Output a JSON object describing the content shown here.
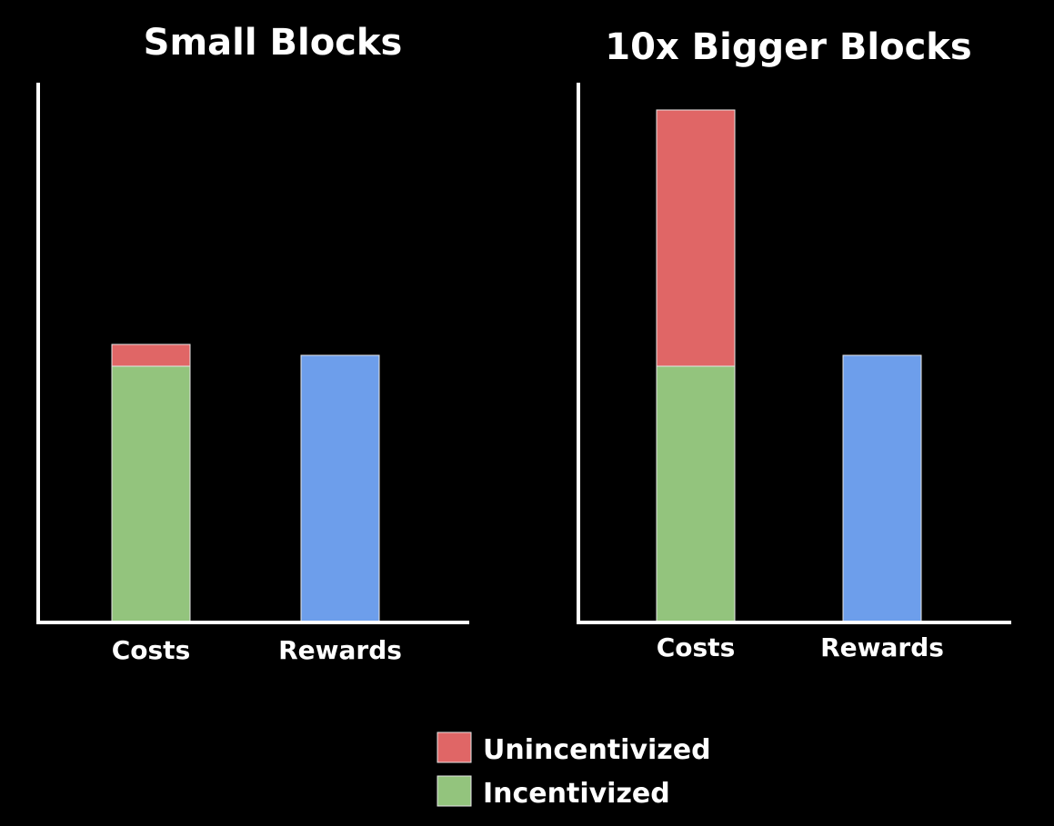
{
  "colors": {
    "background": "#000000",
    "axis": "#ffffff",
    "text": "#ffffff",
    "incentivized": "#93c47d",
    "unincentivized": "#e06666",
    "rewards": "#6d9eeb",
    "bar_edge": "#e6e6e6"
  },
  "legend": {
    "placement": "bottom-center",
    "items": [
      {
        "label": "Unincentivized",
        "color_key": "unincentivized"
      },
      {
        "label": "Incentivized",
        "color_key": "incentivized"
      }
    ]
  },
  "chart_data": [
    {
      "type": "bar",
      "stacked": true,
      "title": "Small Blocks",
      "xlabel": "",
      "ylabel": "",
      "ylim": [
        0,
        100
      ],
      "grid": false,
      "categories": [
        "Costs",
        "Rewards"
      ],
      "bars": [
        {
          "category": "Costs",
          "segments": [
            {
              "series": "Incentivized",
              "value": 47,
              "color_key": "incentivized"
            },
            {
              "series": "Unincentivized",
              "value": 4,
              "color_key": "unincentivized"
            }
          ]
        },
        {
          "category": "Rewards",
          "segments": [
            {
              "series": "Rewards",
              "value": 49,
              "color_key": "rewards"
            }
          ]
        }
      ]
    },
    {
      "type": "bar",
      "stacked": true,
      "title": "10x Bigger Blocks",
      "xlabel": "",
      "ylabel": "",
      "ylim": [
        0,
        100
      ],
      "grid": false,
      "categories": [
        "Costs",
        "Rewards"
      ],
      "bars": [
        {
          "category": "Costs",
          "segments": [
            {
              "series": "Incentivized",
              "value": 47,
              "color_key": "incentivized"
            },
            {
              "series": "Unincentivized",
              "value": 47,
              "color_key": "unincentivized"
            }
          ]
        },
        {
          "category": "Rewards",
          "segments": [
            {
              "series": "Rewards",
              "value": 49,
              "color_key": "rewards"
            }
          ]
        }
      ]
    }
  ]
}
